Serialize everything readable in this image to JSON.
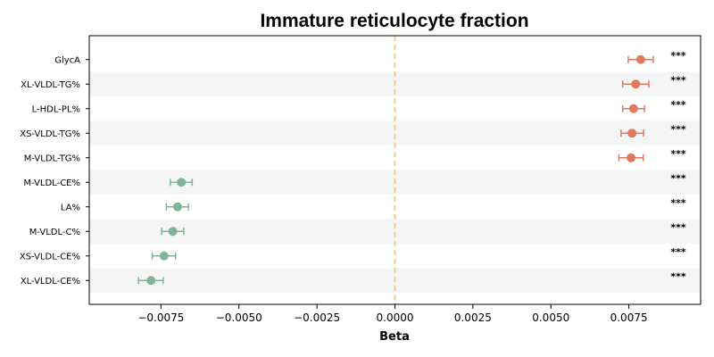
{
  "chart_data": {
    "type": "forest",
    "title": "Immature reticulocyte fraction",
    "xlabel": "Beta",
    "ylabel": "",
    "xlim": [
      -0.0098,
      0.0098
    ],
    "xticks": [
      -0.0075,
      -0.005,
      -0.0025,
      0.0,
      0.0025,
      0.005,
      0.0075
    ],
    "xtick_labels": [
      "−0.0075",
      "−0.0050",
      "−0.0025",
      "0.0000",
      "0.0025",
      "0.0050",
      "0.0075"
    ],
    "reference_line": 0.0,
    "colors": {
      "positive": "#E07A5F",
      "negative": "#81B29A",
      "reference": "#F2CC8F",
      "band": "#f5f5f5"
    },
    "points": [
      {
        "label": "GlycA",
        "beta": 0.00788,
        "ci_low": 0.00748,
        "ci_high": 0.00828,
        "sig": "***"
      },
      {
        "label": "XL-VLDL-TG%",
        "beta": 0.00772,
        "ci_low": 0.0073,
        "ci_high": 0.00814,
        "sig": "***"
      },
      {
        "label": "L-HDL-PL%",
        "beta": 0.00765,
        "ci_low": 0.0073,
        "ci_high": 0.008,
        "sig": "***"
      },
      {
        "label": "XS-VLDL-TG%",
        "beta": 0.0076,
        "ci_low": 0.00725,
        "ci_high": 0.00797,
        "sig": "***"
      },
      {
        "label": "M-VLDL-TG%",
        "beta": 0.00757,
        "ci_low": 0.00718,
        "ci_high": 0.00796,
        "sig": "***"
      },
      {
        "label": "M-VLDL-CE%",
        "beta": -0.00685,
        "ci_low": -0.0072,
        "ci_high": -0.0065,
        "sig": "***"
      },
      {
        "label": "LA%",
        "beta": -0.00697,
        "ci_low": -0.00733,
        "ci_high": -0.00662,
        "sig": "***"
      },
      {
        "label": "M-VLDL-C%",
        "beta": -0.00712,
        "ci_low": -0.00748,
        "ci_high": -0.00677,
        "sig": "***"
      },
      {
        "label": "XS-VLDL-CE%",
        "beta": -0.0074,
        "ci_low": -0.00778,
        "ci_high": -0.00703,
        "sig": "***"
      },
      {
        "label": "XL-VLDL-CE%",
        "beta": -0.00782,
        "ci_low": -0.00822,
        "ci_high": -0.00743,
        "sig": "***"
      }
    ]
  }
}
